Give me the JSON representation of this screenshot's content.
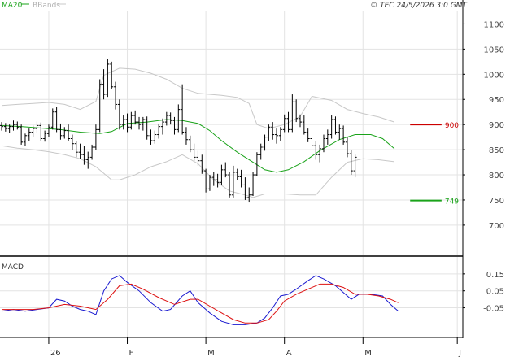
{
  "header": {
    "ma_label": "MA20",
    "bb_label": "BBands",
    "copyright": "© TEC 24/5/2026 3:0 GMT"
  },
  "colors": {
    "ma": "#1aa31a",
    "bbands": "#c8c8c8",
    "price": "#000000",
    "resistance": "#cc0000",
    "support": "#1aa31a",
    "macd": "#1a1ad0",
    "signal": "#dd1111",
    "grid": "#e3e3e3",
    "frame": "#000000"
  },
  "chart_data": [
    {
      "type": "ohlc",
      "y_ticks": [
        700,
        750,
        800,
        850,
        900,
        950,
        1000,
        1050,
        1100
      ],
      "ylim": [
        640,
        1125
      ],
      "grid": true,
      "x_ticks": [
        "26",
        "F",
        "M",
        "A",
        "M",
        "J"
      ],
      "x_tick_pos": [
        12,
        32,
        52,
        72,
        92,
        116
      ],
      "x_range": [
        0,
        117
      ],
      "levels": [
        {
          "value": 900,
          "label": "900",
          "color": "#cc0000",
          "x_start": 104,
          "x_end": 112
        },
        {
          "value": 749,
          "label": "749",
          "color": "#1aa31a",
          "x_start": 104,
          "x_end": 112
        }
      ],
      "ohlc": [
        [
          898,
          905,
          888,
          896
        ],
        [
          896,
          903,
          886,
          892
        ],
        [
          892,
          900,
          883,
          896
        ],
        [
          896,
          908,
          888,
          900
        ],
        [
          900,
          906,
          890,
          895
        ],
        [
          895,
          900,
          860,
          865
        ],
        [
          865,
          882,
          858,
          878
        ],
        [
          878,
          892,
          868,
          885
        ],
        [
          885,
          898,
          876,
          892
        ],
        [
          892,
          906,
          884,
          898
        ],
        [
          898,
          904,
          868,
          872
        ],
        [
          872,
          888,
          866,
          882
        ],
        [
          882,
          900,
          876,
          895
        ],
        [
          895,
          932,
          890,
          925
        ],
        [
          925,
          935,
          885,
          890
        ],
        [
          890,
          902,
          870,
          878
        ],
        [
          878,
          895,
          872,
          888
        ],
        [
          888,
          900,
          868,
          872
        ],
        [
          872,
          880,
          850,
          862
        ],
        [
          862,
          868,
          835,
          845
        ],
        [
          845,
          862,
          832,
          840
        ],
        [
          840,
          858,
          820,
          830
        ],
        [
          830,
          846,
          812,
          835
        ],
        [
          835,
          860,
          830,
          855
        ],
        [
          855,
          900,
          850,
          890
        ],
        [
          890,
          990,
          885,
          980
        ],
        [
          980,
          1010,
          950,
          960
        ],
        [
          960,
          1030,
          955,
          1020
        ],
        [
          1020,
          1025,
          970,
          975
        ],
        [
          975,
          985,
          930,
          940
        ],
        [
          940,
          950,
          890,
          900
        ],
        [
          900,
          918,
          890,
          910
        ],
        [
          910,
          922,
          885,
          895
        ],
        [
          895,
          925,
          890,
          918
        ],
        [
          918,
          928,
          900,
          905
        ],
        [
          905,
          915,
          890,
          900
        ],
        [
          900,
          915,
          888,
          910
        ],
        [
          910,
          916,
          870,
          878
        ],
        [
          878,
          890,
          860,
          868
        ],
        [
          868,
          888,
          862,
          880
        ],
        [
          880,
          902,
          872,
          896
        ],
        [
          896,
          912,
          880,
          905
        ],
        [
          905,
          925,
          898,
          918
        ],
        [
          918,
          924,
          900,
          908
        ],
        [
          908,
          915,
          880,
          890
        ],
        [
          890,
          940,
          885,
          930
        ],
        [
          930,
          980,
          880,
          885
        ],
        [
          885,
          895,
          860,
          870
        ],
        [
          870,
          878,
          845,
          850
        ],
        [
          850,
          862,
          828,
          835
        ],
        [
          835,
          848,
          818,
          828
        ],
        [
          828,
          840,
          802,
          808
        ],
        [
          808,
          812,
          765,
          772
        ],
        [
          772,
          800,
          768,
          795
        ],
        [
          795,
          805,
          778,
          790
        ],
        [
          790,
          802,
          775,
          785
        ],
        [
          785,
          820,
          780,
          810
        ],
        [
          810,
          825,
          795,
          800
        ],
        [
          800,
          806,
          755,
          760
        ],
        [
          760,
          818,
          755,
          805
        ],
        [
          805,
          812,
          790,
          796
        ],
        [
          796,
          810,
          775,
          780
        ],
        [
          780,
          795,
          750,
          755
        ],
        [
          755,
          775,
          745,
          760
        ],
        [
          760,
          805,
          758,
          800
        ],
        [
          800,
          845,
          798,
          840
        ],
        [
          840,
          862,
          830,
          855
        ],
        [
          855,
          880,
          848,
          875
        ],
        [
          875,
          900,
          868,
          895
        ],
        [
          895,
          905,
          870,
          880
        ],
        [
          880,
          892,
          862,
          878
        ],
        [
          878,
          895,
          868,
          890
        ],
        [
          890,
          920,
          885,
          912
        ],
        [
          912,
          925,
          885,
          890
        ],
        [
          890,
          960,
          885,
          945
        ],
        [
          945,
          950,
          905,
          912
        ],
        [
          912,
          920,
          895,
          905
        ],
        [
          905,
          918,
          880,
          885
        ],
        [
          885,
          892,
          865,
          872
        ],
        [
          872,
          880,
          850,
          858
        ],
        [
          858,
          868,
          830,
          840
        ],
        [
          840,
          860,
          825,
          852
        ],
        [
          852,
          880,
          845,
          872
        ],
        [
          872,
          890,
          860,
          880
        ],
        [
          880,
          918,
          872,
          910
        ],
        [
          910,
          916,
          880,
          885
        ],
        [
          885,
          900,
          870,
          892
        ],
        [
          892,
          898,
          860,
          865
        ],
        [
          865,
          875,
          835,
          842
        ],
        [
          842,
          850,
          800,
          808
        ],
        [
          808,
          840,
          795,
          835
        ]
      ],
      "ma20": [
        [
          0,
          898
        ],
        [
          5,
          896
        ],
        [
          10,
          893
        ],
        [
          15,
          890
        ],
        [
          20,
          885
        ],
        [
          25,
          882
        ],
        [
          28,
          886
        ],
        [
          32,
          902
        ],
        [
          37,
          905
        ],
        [
          42,
          910
        ],
        [
          46,
          908
        ],
        [
          50,
          902
        ],
        [
          53,
          888
        ],
        [
          56,
          868
        ],
        [
          60,
          845
        ],
        [
          64,
          825
        ],
        [
          67,
          810
        ],
        [
          70,
          805
        ],
        [
          73,
          810
        ],
        [
          77,
          826
        ],
        [
          81,
          848
        ],
        [
          86,
          870
        ],
        [
          90,
          880
        ],
        [
          94,
          880
        ],
        [
          97,
          872
        ],
        [
          100,
          852
        ]
      ],
      "bb_upper": [
        [
          0,
          938
        ],
        [
          4,
          940
        ],
        [
          8,
          942
        ],
        [
          12,
          944
        ],
        [
          16,
          940
        ],
        [
          20,
          930
        ],
        [
          24,
          946
        ],
        [
          26,
          998
        ],
        [
          30,
          1012
        ],
        [
          34,
          1010
        ],
        [
          38,
          1002
        ],
        [
          42,
          990
        ],
        [
          46,
          972
        ],
        [
          50,
          962
        ],
        [
          56,
          958
        ],
        [
          60,
          954
        ],
        [
          63,
          942
        ],
        [
          65,
          900
        ],
        [
          68,
          892
        ],
        [
          72,
          900
        ],
        [
          76,
          916
        ],
        [
          79,
          956
        ],
        [
          84,
          948
        ],
        [
          88,
          930
        ],
        [
          92,
          922
        ],
        [
          96,
          915
        ],
        [
          100,
          905
        ]
      ],
      "bb_lower": [
        [
          0,
          858
        ],
        [
          4,
          853
        ],
        [
          8,
          850
        ],
        [
          12,
          846
        ],
        [
          16,
          840
        ],
        [
          20,
          832
        ],
        [
          24,
          816
        ],
        [
          28,
          790
        ],
        [
          30,
          790
        ],
        [
          34,
          800
        ],
        [
          38,
          816
        ],
        [
          42,
          826
        ],
        [
          46,
          840
        ],
        [
          50,
          822
        ],
        [
          54,
          790
        ],
        [
          58,
          768
        ],
        [
          62,
          760
        ],
        [
          64,
          755
        ],
        [
          67,
          762
        ],
        [
          72,
          762
        ],
        [
          76,
          760
        ],
        [
          80,
          760
        ],
        [
          84,
          795
        ],
        [
          88,
          825
        ],
        [
          92,
          832
        ],
        [
          96,
          830
        ],
        [
          100,
          826
        ]
      ]
    },
    {
      "type": "line",
      "name": "MACD",
      "title": "MACD",
      "y_ticks": [
        "0.15",
        "0.05",
        "-0.05"
      ],
      "y_tick_values": [
        0.15,
        0.05,
        -0.05
      ],
      "ylim": [
        -0.22,
        0.25
      ],
      "series": [
        {
          "role": "macd",
          "points": [
            [
              0,
              -0.07
            ],
            [
              3,
              -0.06
            ],
            [
              6,
              -0.07
            ],
            [
              9,
              -0.06
            ],
            [
              12,
              -0.05
            ],
            [
              14,
              0.0
            ],
            [
              16,
              -0.01
            ],
            [
              18,
              -0.04
            ],
            [
              20,
              -0.06
            ],
            [
              22,
              -0.07
            ],
            [
              24,
              -0.09
            ],
            [
              26,
              0.05
            ],
            [
              28,
              0.12
            ],
            [
              30,
              0.14
            ],
            [
              32,
              0.1
            ],
            [
              35,
              0.05
            ],
            [
              38,
              -0.02
            ],
            [
              41,
              -0.07
            ],
            [
              43,
              -0.06
            ],
            [
              46,
              0.02
            ],
            [
              48,
              0.05
            ],
            [
              50,
              -0.02
            ],
            [
              53,
              -0.08
            ],
            [
              56,
              -0.13
            ],
            [
              59,
              -0.15
            ],
            [
              62,
              -0.15
            ],
            [
              65,
              -0.14
            ],
            [
              67,
              -0.11
            ],
            [
              69,
              -0.05
            ],
            [
              71,
              0.02
            ],
            [
              73,
              0.03
            ],
            [
              75,
              0.06
            ],
            [
              78,
              0.11
            ],
            [
              80,
              0.14
            ],
            [
              82,
              0.12
            ],
            [
              85,
              0.08
            ],
            [
              87,
              0.04
            ],
            [
              89,
              0.0
            ],
            [
              91,
              0.03
            ],
            [
              94,
              0.03
            ],
            [
              97,
              0.02
            ],
            [
              99,
              -0.03
            ],
            [
              101,
              -0.07
            ]
          ]
        },
        {
          "role": "signal",
          "points": [
            [
              0,
              -0.06
            ],
            [
              4,
              -0.06
            ],
            [
              8,
              -0.06
            ],
            [
              12,
              -0.05
            ],
            [
              16,
              -0.03
            ],
            [
              20,
              -0.04
            ],
            [
              24,
              -0.06
            ],
            [
              27,
              0.0
            ],
            [
              30,
              0.08
            ],
            [
              33,
              0.09
            ],
            [
              36,
              0.06
            ],
            [
              40,
              0.01
            ],
            [
              44,
              -0.03
            ],
            [
              48,
              0.0
            ],
            [
              50,
              0.0
            ],
            [
              53,
              -0.04
            ],
            [
              56,
              -0.08
            ],
            [
              59,
              -0.12
            ],
            [
              62,
              -0.14
            ],
            [
              65,
              -0.14
            ],
            [
              68,
              -0.12
            ],
            [
              70,
              -0.07
            ],
            [
              72,
              -0.01
            ],
            [
              75,
              0.03
            ],
            [
              78,
              0.06
            ],
            [
              81,
              0.09
            ],
            [
              84,
              0.09
            ],
            [
              87,
              0.07
            ],
            [
              90,
              0.03
            ],
            [
              93,
              0.03
            ],
            [
              96,
              0.02
            ],
            [
              99,
              0.0
            ],
            [
              101,
              -0.02
            ]
          ]
        }
      ]
    }
  ]
}
